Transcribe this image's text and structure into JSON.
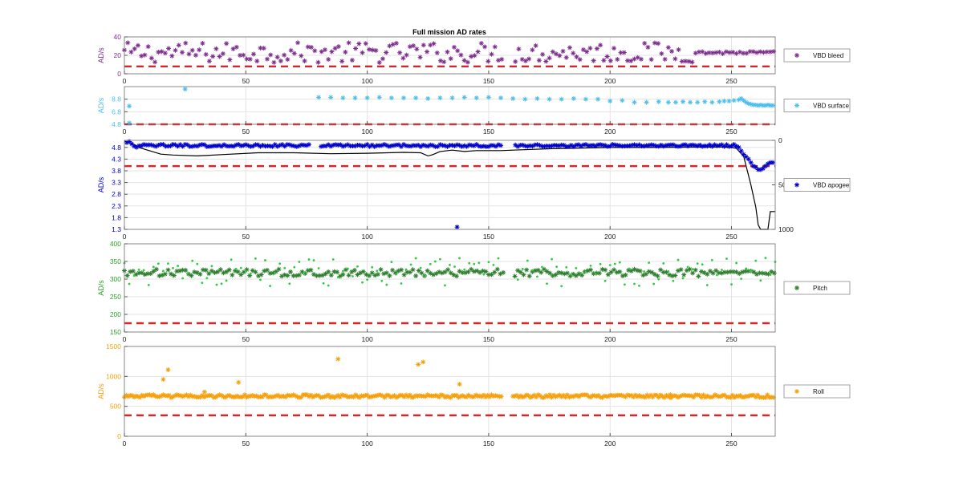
{
  "figure": {
    "title": "Full mission AD rates"
  },
  "chart_data": [
    {
      "type": "scatter",
      "marker": "*",
      "ylabel": "AD/s",
      "label_color": "#7E2F8E",
      "xlim": [
        0,
        268
      ],
      "ylim": [
        0,
        40
      ],
      "xticks": [
        0,
        50,
        100,
        150,
        200,
        250
      ],
      "yticks": [
        0,
        20,
        40
      ],
      "ytick_labels": [
        "0",
        "20",
        "40"
      ],
      "grid": true,
      "legend": {
        "label": "VBD bleed",
        "placement": "right"
      },
      "threshold": {
        "value": 8,
        "color": "#D62728",
        "style": "dashed"
      },
      "gaps": [
        [
          156,
          160
        ]
      ],
      "series": [
        {
          "name": "VBD bleed",
          "color": "#7E2F8E",
          "base": 23,
          "spread": 11,
          "step": 1.4,
          "x_start": 0,
          "x_end": 268,
          "settle_after": 235,
          "settle_spread": 1.5
        }
      ]
    },
    {
      "type": "scatter",
      "marker": "*",
      "ylabel": "AD/s",
      "label_color": "#4DBEEE",
      "xlim": [
        0,
        268
      ],
      "ylim": [
        4.8,
        10.8
      ],
      "xticks": [
        0,
        50,
        100,
        150,
        200,
        250
      ],
      "yticks": [
        4.8,
        6.8,
        8.8
      ],
      "ytick_labels": [
        "4.8",
        "6.8",
        "8.8"
      ],
      "grid": true,
      "legend": {
        "label": "VBD surface",
        "placement": "right"
      },
      "threshold": {
        "value": 4.8,
        "color": "#D62728",
        "style": "dashed"
      },
      "series": [
        {
          "name": "VBD surface",
          "color": "#4DBEEE",
          "points": [
            [
              2,
              7.7
            ],
            [
              2,
              5
            ],
            [
              25,
              10.4
            ],
            [
              80,
              9.1
            ],
            [
              85,
              9.1
            ],
            [
              90,
              9.0
            ],
            [
              95,
              9.0
            ],
            [
              100,
              9.0
            ],
            [
              105,
              9.1
            ],
            [
              110,
              9.0
            ],
            [
              115,
              9.0
            ],
            [
              120,
              9.0
            ],
            [
              125,
              8.9
            ],
            [
              130,
              9.0
            ],
            [
              135,
              9.0
            ],
            [
              140,
              9.1
            ],
            [
              145,
              9.0
            ],
            [
              150,
              9.1
            ],
            [
              155,
              9.0
            ],
            [
              160,
              8.9
            ],
            [
              165,
              8.8
            ],
            [
              170,
              8.9
            ],
            [
              175,
              8.8
            ],
            [
              180,
              8.8
            ],
            [
              185,
              8.9
            ],
            [
              190,
              8.8
            ],
            [
              195,
              8.8
            ],
            [
              200,
              8.5
            ],
            [
              205,
              8.6
            ],
            [
              210,
              8.3
            ],
            [
              215,
              8.3
            ],
            [
              220,
              8.4
            ],
            [
              224,
              8.3
            ],
            [
              227,
              8.3
            ],
            [
              230,
              8.4
            ],
            [
              233,
              8.3
            ],
            [
              236,
              8.3
            ],
            [
              239,
              8.4
            ],
            [
              242,
              8.3
            ],
            [
              245,
              8.4
            ],
            [
              247,
              8.5
            ],
            [
              249,
              8.5
            ],
            [
              251,
              8.6
            ],
            [
              253,
              8.7
            ],
            [
              254,
              8.9
            ],
            [
              255,
              8.6
            ],
            [
              256,
              8.3
            ],
            [
              257,
              8.1
            ],
            [
              258,
              8.0
            ],
            [
              259,
              7.9
            ],
            [
              260,
              7.9
            ],
            [
              261,
              7.8
            ],
            [
              262,
              7.9
            ],
            [
              263,
              7.8
            ],
            [
              264,
              7.8
            ],
            [
              265,
              7.9
            ],
            [
              266,
              7.8
            ],
            [
              267,
              7.8
            ]
          ]
        }
      ]
    },
    {
      "type": "scatter",
      "marker": "*",
      "ylabel": "AD/s",
      "label_color": "#0000CC",
      "xlim": [
        0,
        268
      ],
      "ylim": [
        1.3,
        5.1
      ],
      "xticks": [
        0,
        50,
        100,
        150,
        200,
        250
      ],
      "yticks": [
        1.3,
        1.8,
        2.3,
        2.8,
        3.3,
        3.8,
        4.3,
        4.8
      ],
      "ytick_labels": [
        "1.3",
        "1.8",
        "2.3",
        "2.8",
        "3.3",
        "3.8",
        "4.3",
        "4.8"
      ],
      "grid": true,
      "legend": {
        "label": "VBD apogee",
        "placement": "right"
      },
      "threshold": {
        "value": 4.0,
        "color": "#D62728",
        "style": "dashed"
      },
      "right_axis": {
        "ylim": [
          0,
          1000
        ],
        "reversed": true,
        "ticks": [
          0,
          500,
          1000
        ],
        "tick_labels": [
          "0",
          "500",
          "1000"
        ]
      },
      "gaps": [
        [
          77,
          80
        ],
        [
          156,
          160
        ]
      ],
      "series": [
        {
          "name": "VBD apogee",
          "color": "#0000CC",
          "base": 4.88,
          "spread": 0.05,
          "step": 1.0,
          "x_start": 6,
          "x_end": 252,
          "extra_points": [
            [
              1,
              5.0
            ],
            [
              2,
              5.05
            ],
            [
              3,
              4.95
            ],
            [
              4,
              4.85
            ],
            [
              5,
              4.8
            ],
            [
              137,
              1.4
            ],
            [
              252,
              4.85
            ],
            [
              253,
              4.8
            ],
            [
              254,
              4.65
            ],
            [
              255,
              4.5
            ],
            [
              256,
              4.4
            ],
            [
              257,
              4.3
            ],
            [
              258,
              4.15
            ],
            [
              259,
              4.0
            ],
            [
              260,
              3.95
            ],
            [
              261,
              3.85
            ],
            [
              262,
              3.85
            ],
            [
              263,
              3.9
            ],
            [
              264,
              4.0
            ],
            [
              265,
              4.1
            ],
            [
              266,
              4.15
            ],
            [
              267,
              4.15
            ]
          ]
        }
      ],
      "depth_profile": {
        "color": "#000000",
        "points": [
          [
            0,
            10
          ],
          [
            3,
            30
          ],
          [
            6,
            80
          ],
          [
            12,
            130
          ],
          [
            15,
            155
          ],
          [
            20,
            165
          ],
          [
            30,
            175
          ],
          [
            40,
            160
          ],
          [
            55,
            140
          ],
          [
            70,
            140
          ],
          [
            85,
            150
          ],
          [
            100,
            145
          ],
          [
            115,
            135
          ],
          [
            122,
            140
          ],
          [
            125,
            175
          ],
          [
            127,
            160
          ],
          [
            130,
            125
          ],
          [
            135,
            110
          ],
          [
            140,
            125
          ],
          [
            145,
            115
          ],
          [
            155,
            115
          ],
          [
            160,
            110
          ],
          [
            175,
            95
          ],
          [
            200,
            80
          ],
          [
            215,
            80
          ],
          [
            245,
            75
          ],
          [
            250,
            80
          ],
          [
            252,
            90
          ],
          [
            255,
            180
          ],
          [
            258,
            500
          ],
          [
            260,
            750
          ],
          [
            261,
            950
          ],
          [
            262,
            1000
          ],
          [
            265,
            1000
          ],
          [
            266,
            800
          ],
          [
            268,
            800
          ]
        ]
      }
    },
    {
      "type": "scatter",
      "marker": "* and dots",
      "ylabel": "AD/s",
      "label_color": "#2CA02C",
      "xlim": [
        0,
        268
      ],
      "ylim": [
        150,
        400
      ],
      "xticks": [
        0,
        50,
        100,
        150,
        200,
        250
      ],
      "yticks": [
        150,
        200,
        250,
        300,
        350,
        400
      ],
      "ytick_labels": [
        "150",
        "200",
        "250",
        "300",
        "350",
        "400"
      ],
      "grid": true,
      "legend": {
        "label": "Pitch",
        "placement": "right"
      },
      "threshold": {
        "value": 175,
        "color": "#D62728",
        "style": "dashed"
      },
      "gaps": [
        [
          156,
          160
        ]
      ],
      "series": [
        {
          "name": "Pitch",
          "color": "#2F7F2F",
          "base": 318,
          "spread": 10,
          "step": 1.2,
          "x_start": 0,
          "x_end": 268,
          "settle_after": 245,
          "settle_spread": 5
        },
        {
          "color": "#2ECC40",
          "marker": "dot",
          "base": 320,
          "spread": 40,
          "step": 2.0,
          "x_start": 0,
          "x_end": 268
        }
      ]
    },
    {
      "type": "scatter",
      "marker": "*",
      "ylabel": "AD/s",
      "label_color": "#F5A00C",
      "xlim": [
        0,
        268
      ],
      "ylim": [
        0,
        1500
      ],
      "xticks": [
        0,
        50,
        100,
        150,
        200,
        250
      ],
      "yticks": [
        0,
        500,
        1000,
        1500
      ],
      "ytick_labels": [
        "0",
        "500",
        "1000",
        "1500"
      ],
      "grid": true,
      "legend": {
        "label": "Roll",
        "placement": "right"
      },
      "threshold": {
        "value": 350,
        "color": "#D62728",
        "style": "dashed"
      },
      "gaps": [
        [
          156,
          160
        ]
      ],
      "series": [
        {
          "name": "Roll",
          "color": "#F5A00C",
          "base": 670,
          "spread": 25,
          "step": 0.8,
          "x_start": 0,
          "x_end": 268,
          "extra_points": [
            [
              16,
              950
            ],
            [
              18,
              1110
            ],
            [
              47,
              900
            ],
            [
              88,
              1290
            ],
            [
              121,
              1200
            ],
            [
              123,
              1240
            ],
            [
              138,
              870
            ],
            [
              33,
              740
            ],
            [
              225,
              640
            ]
          ]
        }
      ]
    }
  ]
}
